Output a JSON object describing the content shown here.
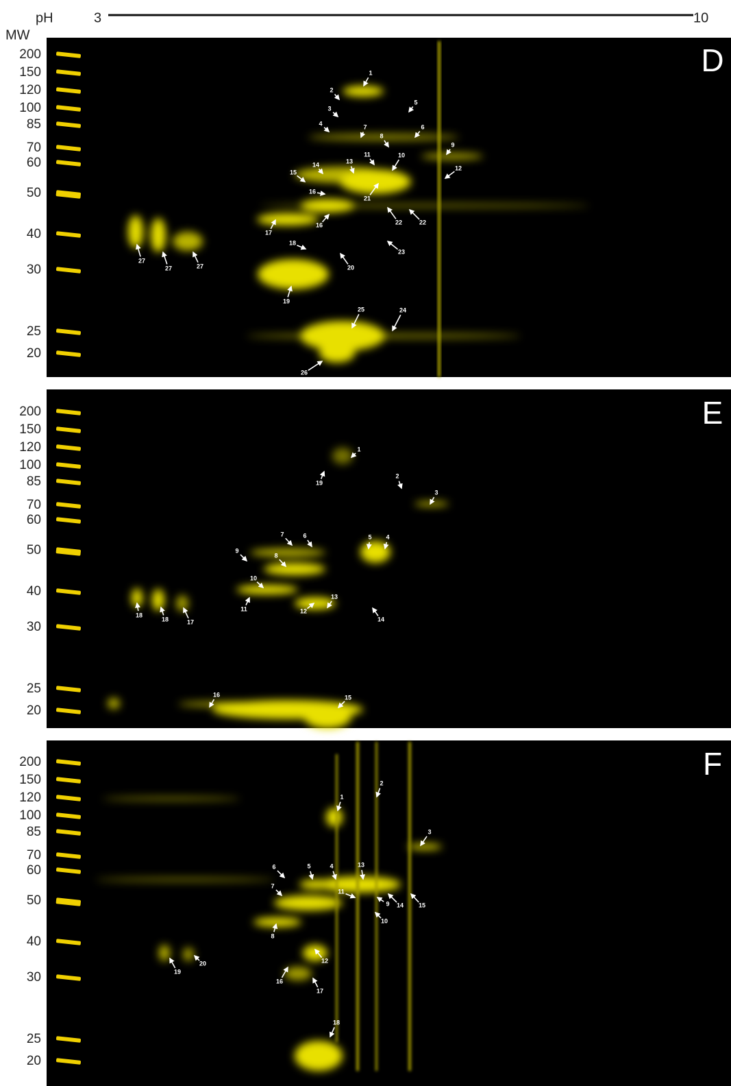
{
  "header": {
    "ph_label": "pH",
    "ph_start": "3",
    "ph_end": "10",
    "mw_label": "MW"
  },
  "panels": [
    {
      "letter": "D",
      "mw_markers": [
        200,
        150,
        120,
        100,
        85,
        70,
        60,
        50,
        40,
        30,
        25,
        20
      ],
      "spots": [
        "1",
        "2",
        "3",
        "5",
        "4",
        "7",
        "6",
        "8",
        "9",
        "10",
        "11",
        "13",
        "14",
        "15",
        "12",
        "16",
        "21",
        "16",
        "22",
        "22",
        "17",
        "18",
        "23",
        "20",
        "27",
        "27",
        "27",
        "19",
        "25",
        "24",
        "26"
      ]
    },
    {
      "letter": "E",
      "mw_markers": [
        200,
        150,
        120,
        100,
        85,
        70,
        60,
        50,
        40,
        30,
        25,
        20
      ],
      "spots": [
        "1",
        "19",
        "2",
        "3",
        "7",
        "6",
        "5",
        "4",
        "9",
        "8",
        "10",
        "14",
        "11",
        "13",
        "18",
        "18",
        "17",
        "12",
        "16",
        "15"
      ]
    },
    {
      "letter": "F",
      "mw_markers": [
        200,
        150,
        120,
        100,
        85,
        70,
        60,
        50,
        40,
        30,
        25,
        20
      ],
      "spots": [
        "2",
        "1",
        "3",
        "5",
        "4",
        "13",
        "6",
        "7",
        "14",
        "15",
        "11",
        "9",
        "10",
        "8",
        "12",
        "19",
        "20",
        "16",
        "17",
        "18"
      ]
    }
  ]
}
